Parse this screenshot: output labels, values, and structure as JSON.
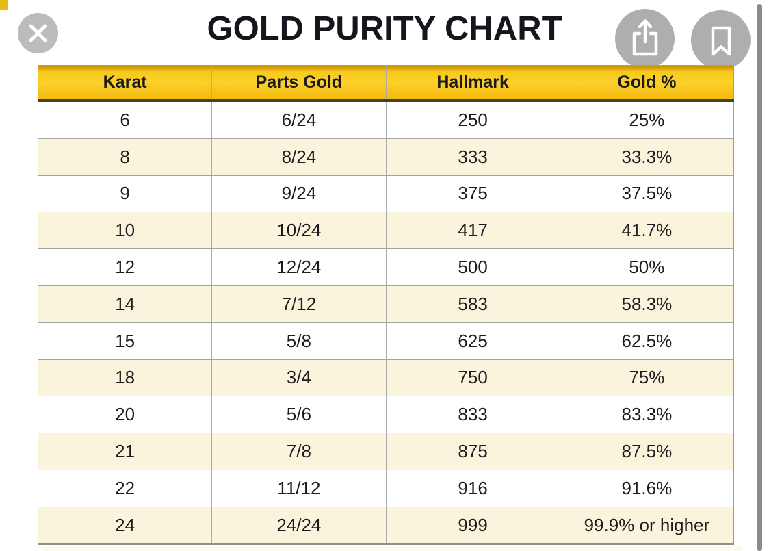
{
  "header": {
    "title": "GOLD PURITY CHART"
  },
  "toolbar": {
    "close_icon": "close-x",
    "share_icon": "share-export-arrow",
    "bookmark_icon": "bookmark-ribbon"
  },
  "table": {
    "columns": [
      "Karat",
      "Parts Gold",
      "Hallmark",
      "Gold %"
    ],
    "rows": [
      [
        "6",
        "6/24",
        "250",
        "25%"
      ],
      [
        "8",
        "8/24",
        "333",
        "33.3%"
      ],
      [
        "9",
        "9/24",
        "375",
        "37.5%"
      ],
      [
        "10",
        "10/24",
        "417",
        "41.7%"
      ],
      [
        "12",
        "12/24",
        "500",
        "50%"
      ],
      [
        "14",
        "7/12",
        "583",
        "58.3%"
      ],
      [
        "15",
        "5/8",
        "625",
        "62.5%"
      ],
      [
        "18",
        "3/4",
        "750",
        "75%"
      ],
      [
        "20",
        "5/6",
        "833",
        "83.3%"
      ],
      [
        "21",
        "7/8",
        "875",
        "87.5%"
      ],
      [
        "22",
        "11/12",
        "916",
        "91.6%"
      ],
      [
        "24",
        "24/24",
        "999",
        "99.9% or higher"
      ]
    ]
  },
  "chart_data": {
    "type": "table",
    "title": "GOLD PURITY CHART",
    "columns": [
      "Karat",
      "Parts Gold",
      "Hallmark",
      "Gold %"
    ],
    "rows": [
      [
        "6",
        "6/24",
        "250",
        "25%"
      ],
      [
        "8",
        "8/24",
        "333",
        "33.3%"
      ],
      [
        "9",
        "9/24",
        "375",
        "37.5%"
      ],
      [
        "10",
        "10/24",
        "417",
        "41.7%"
      ],
      [
        "12",
        "12/24",
        "500",
        "50%"
      ],
      [
        "14",
        "7/12",
        "583",
        "58.3%"
      ],
      [
        "15",
        "5/8",
        "625",
        "62.5%"
      ],
      [
        "18",
        "3/4",
        "750",
        "75%"
      ],
      [
        "20",
        "5/6",
        "833",
        "83.3%"
      ],
      [
        "21",
        "7/8",
        "875",
        "87.5%"
      ],
      [
        "22",
        "11/12",
        "916",
        "91.6%"
      ],
      [
        "24",
        "24/24",
        "999",
        "99.9% or higher"
      ]
    ]
  },
  "colors": {
    "header_yellow": "#F8CA1E",
    "header_top_edge": "#CF9A06",
    "header_bottom_border": "#46421D",
    "row_cream": "#FBF4DC",
    "grid_line": "#A3A3A3",
    "button_grey": "#AEAEAE",
    "scrollbar_grey": "#8B8B8B",
    "text": "#1C1C1C"
  }
}
